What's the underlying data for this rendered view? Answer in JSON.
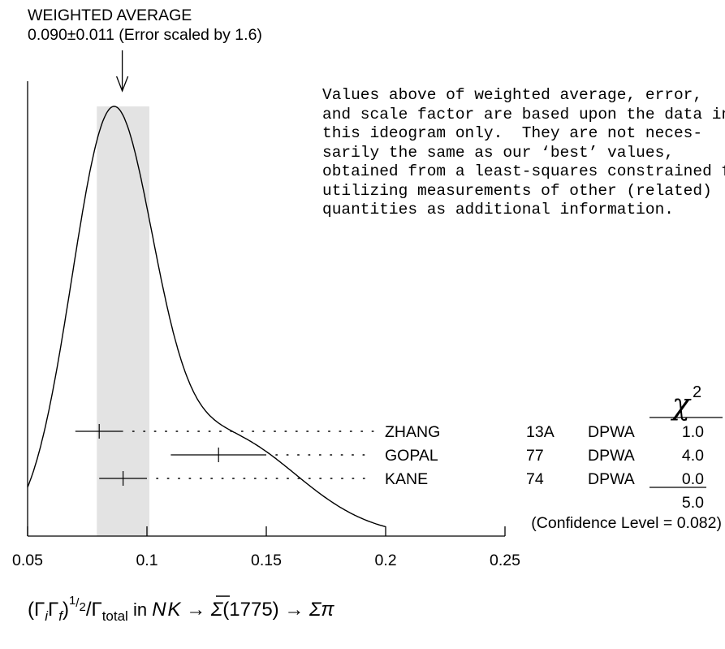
{
  "chart_data": {
    "type": "ideogram",
    "title_line1": "WEIGHTED AVERAGE",
    "title_line2": "0.090±0.011 (Error scaled by 1.6)",
    "weighted_average": {
      "value": 0.09,
      "error": 0.011
    },
    "note_lines": [
      "Values above of weighted average, error,",
      "and scale factor are based upon the data in",
      "this ideogram only.  They are not neces-",
      "sarily the same as our ‘best’ values,",
      "obtained from a least-squares constrained fit",
      "utilizing measurements of other (related)",
      "quantities as additional information."
    ],
    "xlim": [
      0.05,
      0.25
    ],
    "x_ticks": [
      "0.05",
      "0.1",
      "0.15",
      "0.2",
      "0.25"
    ],
    "x_tick_values": [
      0.05,
      0.1,
      0.15,
      0.2,
      0.25
    ],
    "x_label": "(Γ_i Γ_f)^½ / Γ_total  in  N K̄ → Σ(1775) → Σπ",
    "chi2_header": "χ",
    "chi2_sup": "2",
    "measurements": [
      {
        "author": "ZHANG",
        "year": "13A",
        "tech": "DPWA",
        "value": 0.08,
        "error": 0.01,
        "chi2": "1.0"
      },
      {
        "author": "GOPAL",
        "year": "77",
        "tech": "DPWA",
        "value": 0.13,
        "error": 0.02,
        "chi2": "4.0"
      },
      {
        "author": "KANE",
        "year": "74",
        "tech": "DPWA",
        "value": 0.09,
        "error": 0.01,
        "chi2": "0.0"
      }
    ],
    "chi2_total": "5.0",
    "confidence_level": "(Confidence Level = 0.082)"
  }
}
